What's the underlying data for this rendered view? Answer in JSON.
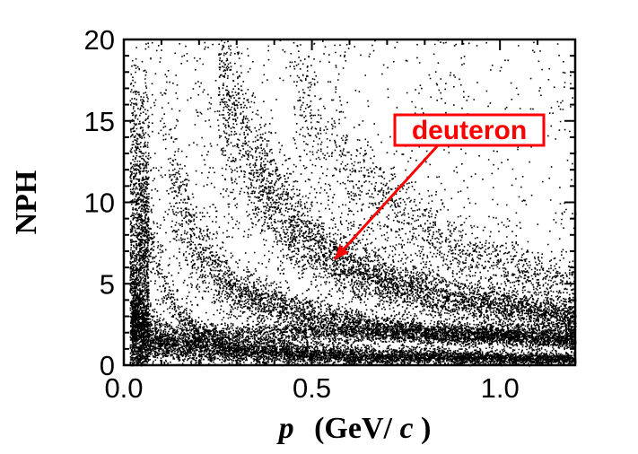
{
  "chart_data": {
    "type": "scatter",
    "title": "",
    "xlabel": {
      "var": "p",
      "unit_open": "(GeV/",
      "unit_var": "c",
      "unit_close": ")"
    },
    "ylabel": "NPH",
    "xlim": [
      0.0,
      1.2
    ],
    "ylim": [
      0,
      20
    ],
    "x_ticks": [
      "0.0",
      "0.5",
      "1.0"
    ],
    "x_tick_values": [
      0.0,
      0.5,
      1.0
    ],
    "y_ticks": [
      "0",
      "5",
      "10",
      "15",
      "20"
    ],
    "y_tick_values": [
      0,
      5,
      10,
      15,
      20
    ],
    "grid": false,
    "marker_color": "#000000",
    "bands": [
      {
        "label": "",
        "description": "low-NPH band near zero",
        "points": [
          [
            0.02,
            2.5
          ],
          [
            0.1,
            1.5
          ],
          [
            0.3,
            0.9
          ],
          [
            0.6,
            0.6
          ],
          [
            1.2,
            0.4
          ]
        ]
      },
      {
        "label": "",
        "description": "steep band at low p",
        "points": [
          [
            0.02,
            15
          ],
          [
            0.05,
            9
          ],
          [
            0.1,
            5
          ],
          [
            0.15,
            3
          ],
          [
            0.2,
            2
          ]
        ]
      },
      {
        "label": "",
        "description": "second band",
        "points": [
          [
            0.12,
            11.5
          ],
          [
            0.2,
            7
          ],
          [
            0.3,
            4.5
          ],
          [
            0.5,
            3
          ],
          [
            0.8,
            2
          ],
          [
            1.2,
            1.5
          ]
        ]
      },
      {
        "label": "deuteron",
        "description": "deuteron band",
        "points": [
          [
            0.25,
            18
          ],
          [
            0.35,
            12
          ],
          [
            0.45,
            8.5
          ],
          [
            0.55,
            6.5
          ],
          [
            0.7,
            5
          ],
          [
            0.9,
            4
          ],
          [
            1.2,
            3
          ]
        ]
      },
      {
        "label": "",
        "description": "faint upper band",
        "points": [
          [
            0.45,
            18
          ],
          [
            0.6,
            12
          ],
          [
            0.75,
            9
          ],
          [
            0.9,
            7
          ],
          [
            1.1,
            5.5
          ],
          [
            1.2,
            5
          ]
        ]
      }
    ],
    "annotations": [
      {
        "text": "deuteron",
        "color": "#ff0000",
        "target": [
          0.56,
          6.5
        ]
      }
    ]
  }
}
